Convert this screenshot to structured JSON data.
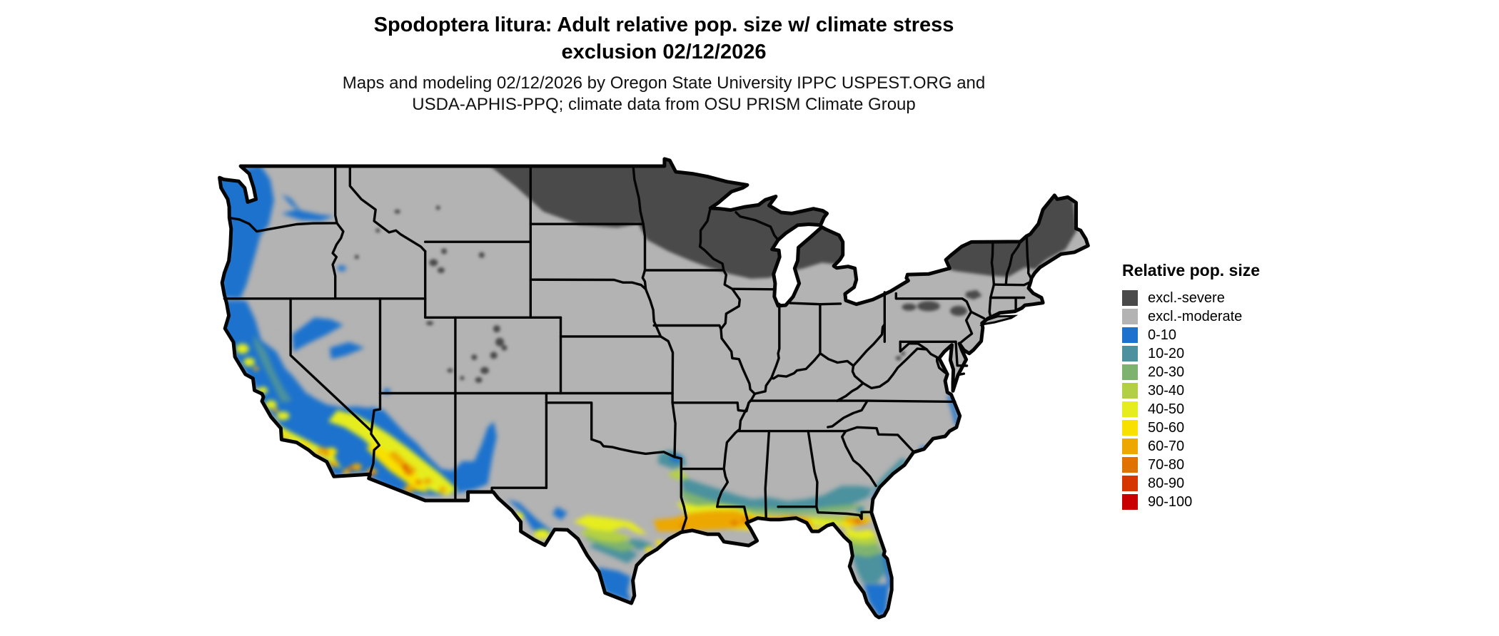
{
  "header": {
    "title_line1": "Spodoptera litura: Adult relative pop. size w/ climate stress",
    "title_line2": "exclusion 02/12/2026",
    "subtitle_line1": "Maps and modeling 02/12/2026 by Oregon State University IPPC USPEST.ORG and",
    "subtitle_line2": "USDA-APHIS-PPQ; climate data from OSU PRISM Climate Group"
  },
  "legend": {
    "title": "Relative pop. size",
    "items": [
      {
        "label": "excl.-severe",
        "color": "#4a4a4a"
      },
      {
        "label": "excl.-moderate",
        "color": "#b3b3b3"
      },
      {
        "label": "0-10",
        "color": "#1c72cd"
      },
      {
        "label": "10-20",
        "color": "#4b919e"
      },
      {
        "label": "20-30",
        "color": "#7eb36f"
      },
      {
        "label": "30-40",
        "color": "#b3d044"
      },
      {
        "label": "40-50",
        "color": "#e6ed1e"
      },
      {
        "label": "50-60",
        "color": "#f8e000"
      },
      {
        "label": "60-70",
        "color": "#eda800"
      },
      {
        "label": "70-80",
        "color": "#e07200"
      },
      {
        "label": "80-90",
        "color": "#d63600"
      },
      {
        "label": "90-100",
        "color": "#c80000"
      }
    ]
  },
  "map": {
    "land_color": "#b3b3b3",
    "severe_color": "#4a4a4a",
    "border_color": "#050505",
    "water_color": "#ffffff"
  }
}
